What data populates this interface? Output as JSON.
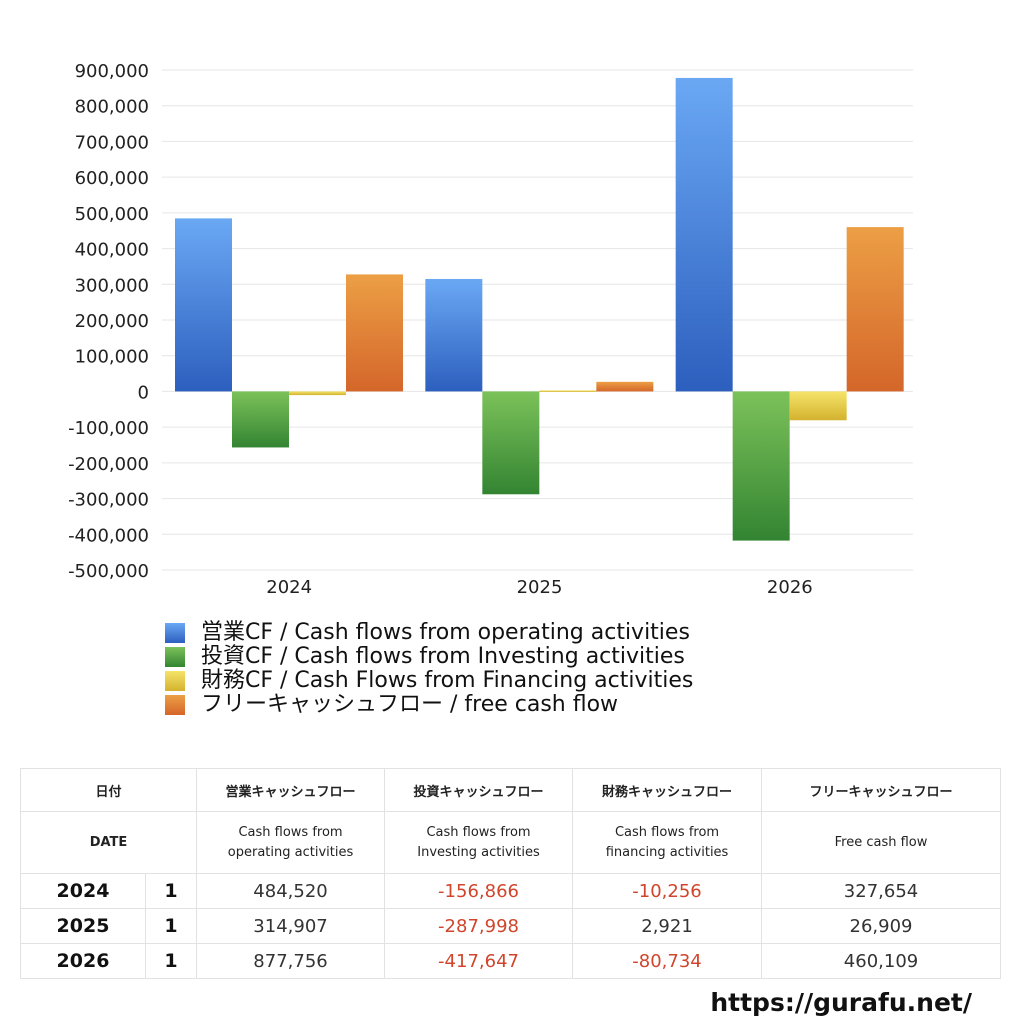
{
  "chart_data": {
    "type": "bar",
    "categories": [
      "2024",
      "2025",
      "2026"
    ],
    "ylim": [
      -500000,
      900000
    ],
    "yticks": [
      900000,
      800000,
      700000,
      600000,
      500000,
      400000,
      300000,
      200000,
      100000,
      0,
      -100000,
      -200000,
      -300000,
      -400000,
      -500000
    ],
    "ytick_labels": [
      "900,000",
      "800,000",
      "700,000",
      "600,000",
      "500,000",
      "400,000",
      "300,000",
      "200,000",
      "100,000",
      "0",
      "-100,000",
      "-200,000",
      "-300,000",
      "-400,000",
      "-500,000"
    ],
    "grid": true,
    "legend_position": "bottom",
    "series": [
      {
        "name": "営業CF / Cash flows from operating activities",
        "values": [
          484520,
          314907,
          877756
        ],
        "color_top": "#6aa8f4",
        "color_bottom": "#2d5fbe"
      },
      {
        "name": "投資CF / Cash flows from Investing activities",
        "values": [
          -156866,
          -287998,
          -417647
        ],
        "color_top": "#7cc25a",
        "color_bottom": "#338432"
      },
      {
        "name": "財務CF / Cash Flows from Financing activities",
        "values": [
          -10256,
          2921,
          -80734
        ],
        "color_top": "#f5e46a",
        "color_bottom": "#d4b22e"
      },
      {
        "name": "フリーキャッシュフロー / free cash flow",
        "values": [
          327654,
          26909,
          460109
        ],
        "color_top": "#ec9f45",
        "color_bottom": "#d4662a"
      }
    ]
  },
  "table": {
    "header1": {
      "date": "日付",
      "operating": "営業キャッシュフロー",
      "investing": "投資キャッシュフロー",
      "financing": "財務キャッシュフロー",
      "free": "フリーキャッシュフロー"
    },
    "header2": {
      "date": "DATE",
      "operating": "Cash flows from\noperating activities",
      "investing": "Cash flows from\nInvesting activities",
      "financing": "Cash flows from\nfinancing activities",
      "free": "Free cash flow"
    },
    "rows": [
      {
        "year": "2024",
        "q": "1",
        "operating": "484,520",
        "investing": "-156,866",
        "financing": "-10,256",
        "free": "327,654"
      },
      {
        "year": "2025",
        "q": "1",
        "operating": "314,907",
        "investing": "-287,998",
        "financing": "2,921",
        "free": "26,909"
      },
      {
        "year": "2026",
        "q": "1",
        "operating": "877,756",
        "investing": "-417,647",
        "financing": "-80,734",
        "free": "460,109"
      }
    ]
  },
  "footer": {
    "site": "https://gurafu.net/"
  }
}
